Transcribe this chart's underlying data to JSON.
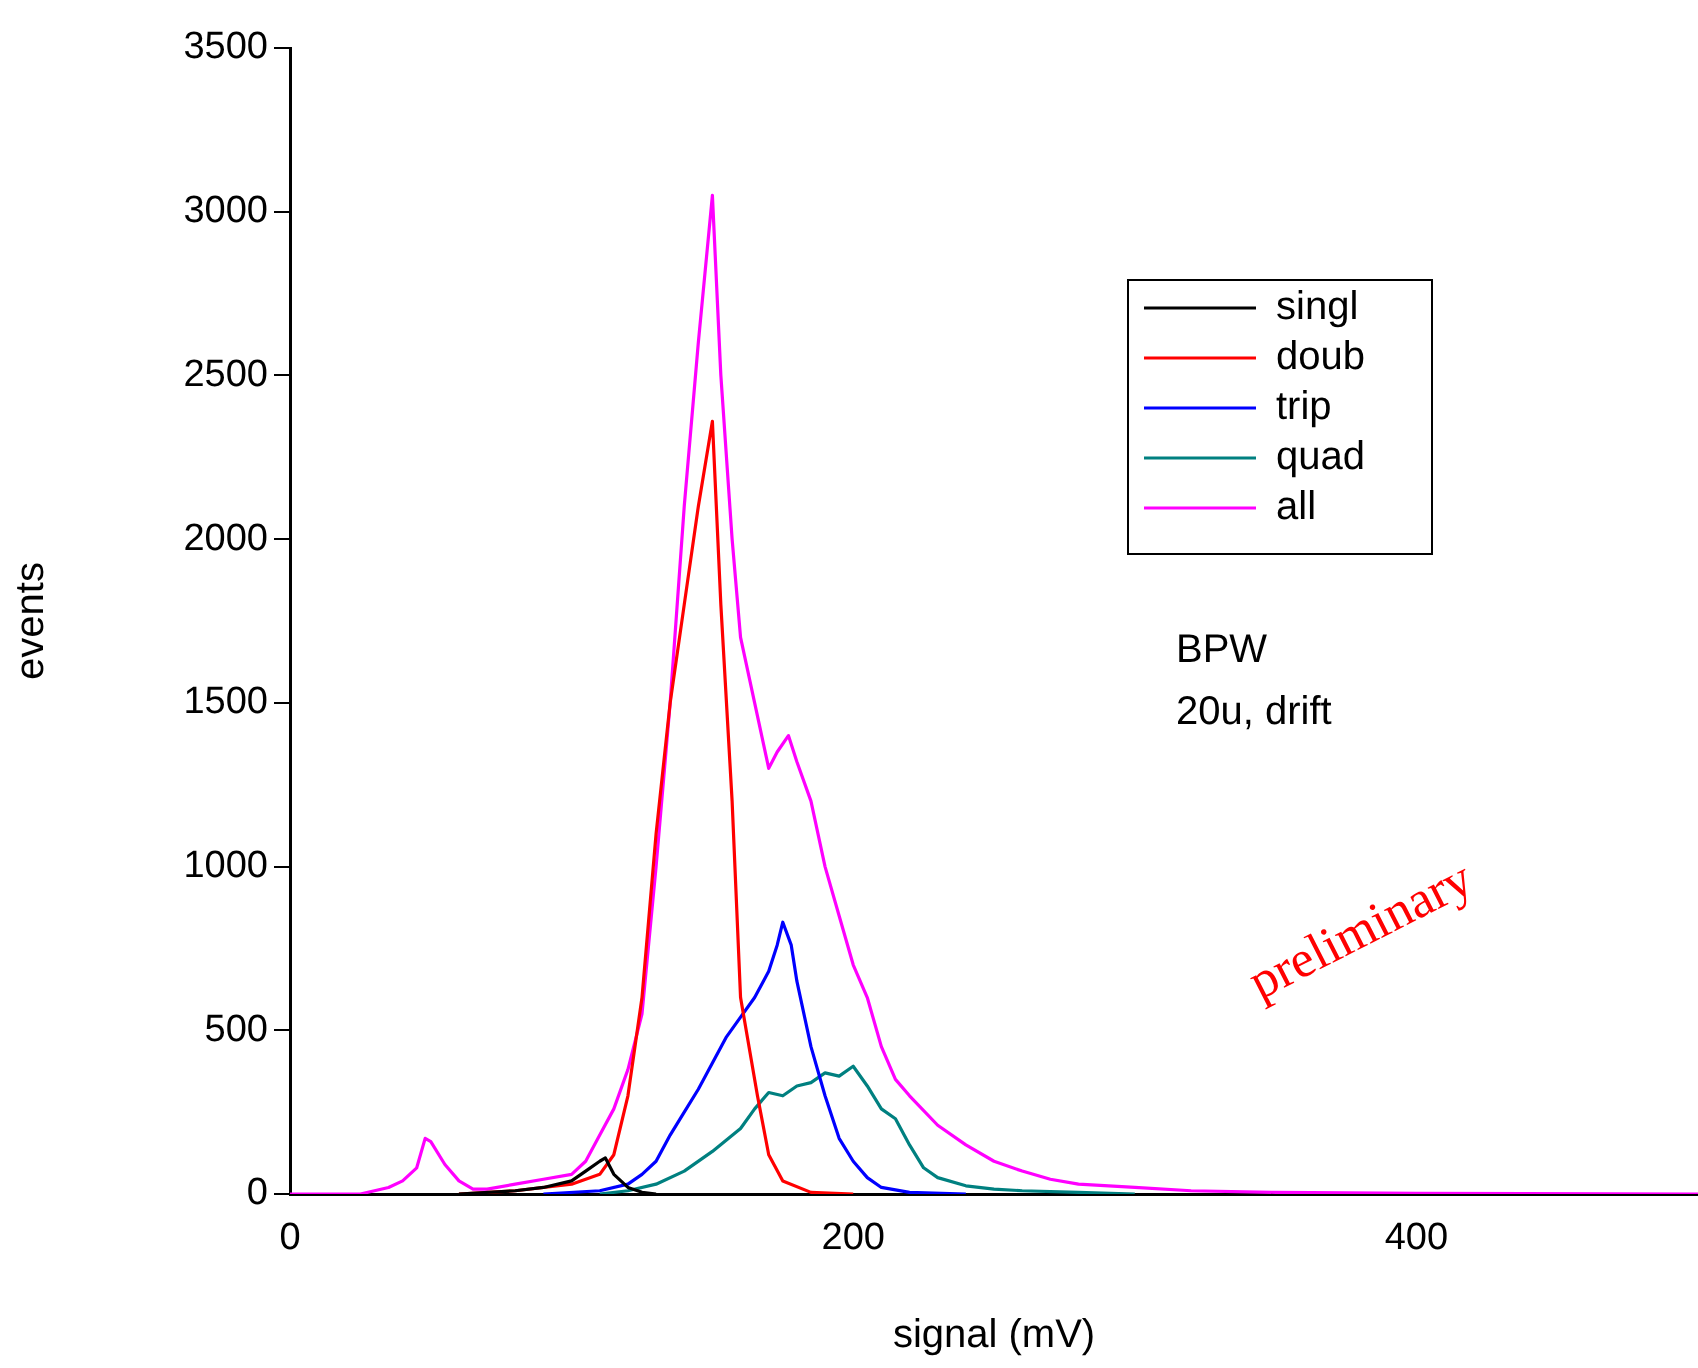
{
  "chart_data": {
    "type": "line",
    "xlabel": "signal (mV)",
    "ylabel": "events",
    "xlim": [
      0,
      500
    ],
    "ylim": [
      0,
      3500
    ],
    "xticks": [
      0,
      200,
      400
    ],
    "yticks": [
      0,
      500,
      1000,
      1500,
      2000,
      2500,
      3000,
      3500
    ],
    "grid": false,
    "legend": "top right",
    "marker": "none",
    "line_style": "solid",
    "annotations": [
      "BPW",
      "20u, drift",
      "preliminary"
    ],
    "series": [
      {
        "name": "singl",
        "color": "#000000",
        "x": [
          60,
          80,
          90,
          100,
          105,
          110,
          112,
          115,
          120,
          125,
          130
        ],
        "values": [
          0,
          10,
          20,
          40,
          70,
          100,
          110,
          60,
          20,
          5,
          0
        ]
      },
      {
        "name": "doub",
        "color": "#ff0000",
        "x": [
          60,
          80,
          100,
          110,
          115,
          120,
          125,
          130,
          135,
          140,
          145,
          150,
          153,
          157,
          160,
          166,
          170,
          175,
          185,
          200
        ],
        "values": [
          0,
          10,
          30,
          60,
          120,
          300,
          600,
          1100,
          1500,
          1800,
          2100,
          2360,
          1800,
          1200,
          600,
          300,
          120,
          40,
          5,
          0
        ]
      },
      {
        "name": "trip",
        "color": "#0000ff",
        "x": [
          90,
          110,
          120,
          125,
          130,
          135,
          140,
          145,
          150,
          155,
          160,
          165,
          170,
          173,
          175,
          178,
          180,
          185,
          190,
          195,
          200,
          205,
          210,
          220,
          240
        ],
        "values": [
          0,
          10,
          30,
          60,
          100,
          180,
          250,
          320,
          400,
          480,
          540,
          600,
          680,
          760,
          830,
          760,
          650,
          450,
          300,
          170,
          100,
          50,
          20,
          5,
          0
        ]
      },
      {
        "name": "quad",
        "color": "#008080",
        "x": [
          110,
          120,
          130,
          140,
          150,
          160,
          165,
          170,
          175,
          180,
          185,
          190,
          195,
          200,
          205,
          210,
          215,
          220,
          225,
          230,
          240,
          250,
          260,
          280,
          300
        ],
        "values": [
          0,
          10,
          30,
          70,
          130,
          200,
          260,
          310,
          300,
          330,
          340,
          370,
          360,
          390,
          330,
          260,
          230,
          150,
          80,
          50,
          25,
          15,
          10,
          5,
          0
        ]
      },
      {
        "name": "all",
        "color": "#ff00ff",
        "x": [
          0,
          25,
          30,
          35,
          40,
          45,
          48,
          50,
          55,
          60,
          65,
          70,
          80,
          90,
          100,
          105,
          110,
          115,
          120,
          125,
          130,
          135,
          140,
          145,
          150,
          153,
          157,
          160,
          165,
          170,
          173,
          177,
          180,
          185,
          190,
          195,
          200,
          205,
          210,
          215,
          220,
          230,
          240,
          250,
          260,
          270,
          280,
          300,
          320,
          350,
          400,
          500
        ],
        "values": [
          0,
          0,
          10,
          20,
          40,
          80,
          170,
          160,
          90,
          40,
          15,
          15,
          30,
          45,
          60,
          100,
          180,
          260,
          380,
          550,
          1000,
          1500,
          2100,
          2600,
          3050,
          2500,
          2000,
          1700,
          1500,
          1300,
          1350,
          1400,
          1320,
          1200,
          1000,
          850,
          700,
          600,
          450,
          350,
          300,
          210,
          150,
          100,
          70,
          45,
          30,
          20,
          10,
          5,
          2,
          0
        ]
      }
    ]
  }
}
